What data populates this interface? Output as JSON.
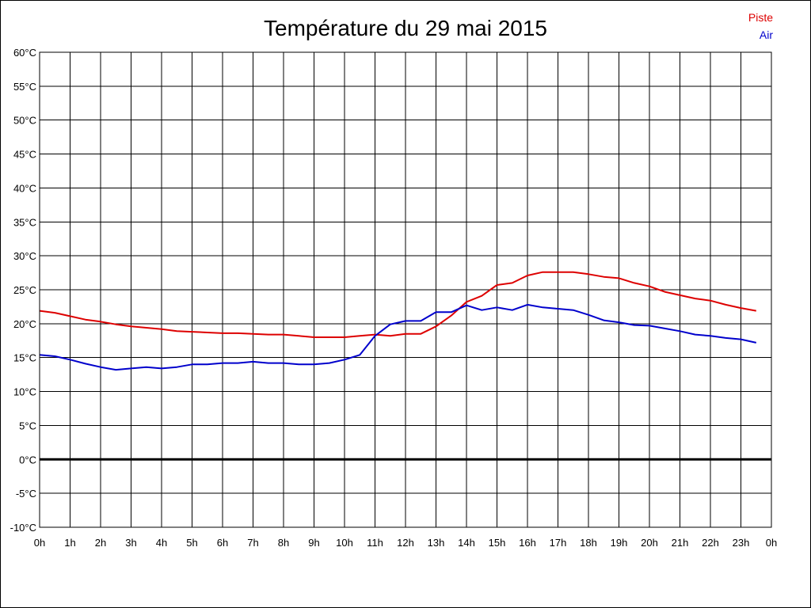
{
  "chart_data": {
    "type": "line",
    "title": "Température du 29 mai 2015",
    "xlabel": "",
    "ylabel": "",
    "x_ticks": [
      "0h",
      "1h",
      "2h",
      "3h",
      "4h",
      "5h",
      "6h",
      "7h",
      "8h",
      "9h",
      "10h",
      "11h",
      "12h",
      "13h",
      "14h",
      "15h",
      "16h",
      "17h",
      "18h",
      "19h",
      "20h",
      "21h",
      "22h",
      "23h",
      "0h"
    ],
    "y_ticks": [
      "60°C",
      "55°C",
      "50°C",
      "45°C",
      "40°C",
      "35°C",
      "30°C",
      "25°C",
      "20°C",
      "15°C",
      "10°C",
      "5°C",
      "0°C",
      "-5°C",
      "-10°C"
    ],
    "xlim": [
      0,
      24
    ],
    "ylim": [
      -10,
      60
    ],
    "grid": true,
    "legend_position": "top-right",
    "x": [
      0,
      0.5,
      1,
      1.5,
      2,
      2.5,
      3,
      3.5,
      4,
      4.5,
      5,
      5.5,
      6,
      6.5,
      7,
      7.5,
      8,
      8.5,
      9,
      9.5,
      10,
      10.5,
      11,
      11.5,
      12,
      12.5,
      13,
      13.5,
      14,
      14.5,
      15,
      15.5,
      16,
      16.5,
      17,
      17.5,
      18,
      18.5,
      19,
      19.5,
      20,
      20.5,
      21,
      21.5,
      22,
      22.5,
      23,
      23.5
    ],
    "series": [
      {
        "name": "Piste",
        "color": "#dd0000",
        "values": [
          21.9,
          21.6,
          21.1,
          20.6,
          20.3,
          19.9,
          19.6,
          19.4,
          19.2,
          18.9,
          18.8,
          18.7,
          18.6,
          18.6,
          18.5,
          18.4,
          18.4,
          18.2,
          18.0,
          18.0,
          18.0,
          18.2,
          18.4,
          18.2,
          18.5,
          18.5,
          19.6,
          21.2,
          23.2,
          24.1,
          25.7,
          26.0,
          27.1,
          27.6,
          27.6,
          27.6,
          27.3,
          26.9,
          26.7,
          26.0,
          25.5,
          24.7,
          24.2,
          23.7,
          23.4,
          22.8,
          22.3,
          21.9
        ]
      },
      {
        "name": "Air",
        "color": "#0000cc",
        "values": [
          15.4,
          15.2,
          14.7,
          14.1,
          13.6,
          13.2,
          13.4,
          13.6,
          13.4,
          13.6,
          14.0,
          14.0,
          14.2,
          14.2,
          14.4,
          14.2,
          14.2,
          14.0,
          14.0,
          14.2,
          14.7,
          15.4,
          18.2,
          19.9,
          20.4,
          20.4,
          21.7,
          21.7,
          22.7,
          22.0,
          22.4,
          22.0,
          22.8,
          22.4,
          22.2,
          22.0,
          21.3,
          20.5,
          20.2,
          19.8,
          19.7,
          19.3,
          18.9,
          18.4,
          18.2,
          17.9,
          17.7,
          17.2
        ]
      }
    ],
    "zero_line": true
  }
}
